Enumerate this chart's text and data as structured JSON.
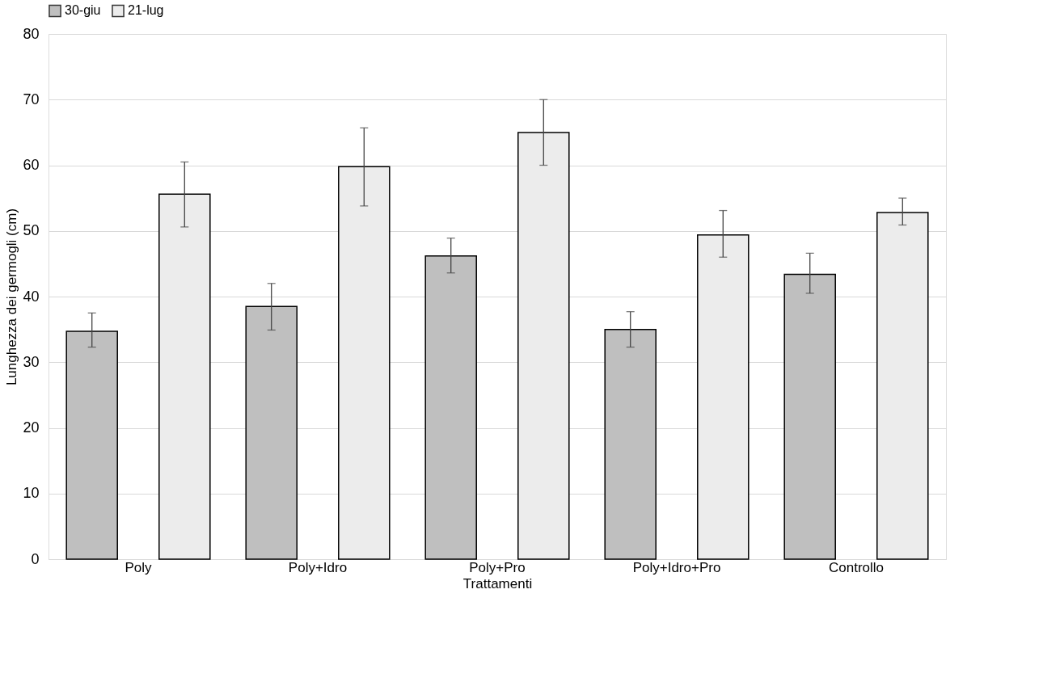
{
  "chart_data": {
    "type": "bar",
    "xlabel": "Trattamenti",
    "ylabel": "Lunghezza dei germogli (cm)",
    "categories": [
      "Poly",
      "Poly+Idro",
      "Poly+Pro",
      "Poly+Idro+Pro",
      "Controllo"
    ],
    "series": [
      {
        "name": "30-giu",
        "color": "#bfbfbf",
        "values": [
          34.7,
          38.5,
          46.2,
          35.0,
          43.4
        ],
        "errors": [
          [
            32.3,
            37.5
          ],
          [
            34.9,
            42.0
          ],
          [
            43.6,
            48.9
          ],
          [
            32.3,
            37.7
          ],
          [
            40.5,
            46.6
          ]
        ]
      },
      {
        "name": "21-lug",
        "color": "#ececec",
        "values": [
          55.6,
          59.8,
          65.0,
          49.4,
          52.8
        ],
        "errors": [
          [
            50.6,
            60.5
          ],
          [
            53.8,
            65.7
          ],
          [
            60.0,
            70.0
          ],
          [
            46.0,
            53.1
          ],
          [
            50.9,
            55.0
          ]
        ]
      }
    ],
    "ylim": [
      0,
      80
    ],
    "yticks": [
      0,
      10,
      20,
      30,
      40,
      50,
      60,
      70,
      80
    ],
    "grid": "y",
    "legend": "top"
  }
}
